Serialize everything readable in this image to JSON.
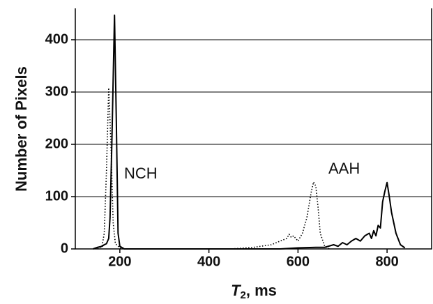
{
  "chart_data": {
    "type": "line",
    "xlabel": {
      "symbol": "T",
      "subscript": "2",
      "unit": ", ms"
    },
    "ylabel": "Number of Pixels",
    "xlim": [
      100,
      900
    ],
    "ylim": [
      0,
      460
    ],
    "xticks": [
      200,
      400,
      600,
      800
    ],
    "yticks": [
      0,
      100,
      200,
      300,
      400
    ],
    "grid": true,
    "annotations": [
      "NCH",
      "AAH"
    ],
    "series": [
      {
        "color": "#000000",
        "style": "solid",
        "x": [
          140,
          150,
          160,
          165,
          170,
          175,
          178,
          182,
          188,
          192,
          196,
          200,
          210,
          560,
          600,
          640,
          660,
          680,
          690,
          700,
          710,
          720,
          730,
          740,
          750,
          760,
          765,
          770,
          775,
          780,
          785,
          790,
          795,
          800,
          805,
          810,
          820,
          830,
          840
        ],
        "values": [
          0,
          3,
          5,
          8,
          10,
          20,
          60,
          200,
          447,
          250,
          30,
          5,
          0,
          0,
          2,
          3,
          3,
          8,
          5,
          12,
          8,
          15,
          20,
          15,
          25,
          30,
          20,
          35,
          25,
          45,
          40,
          90,
          110,
          127,
          100,
          70,
          30,
          8,
          2
        ]
      },
      {
        "color": "#000000",
        "style": "dotted",
        "x": [
          150,
          160,
          165,
          170,
          175,
          180,
          185,
          190,
          200,
          210,
          450,
          500,
          540,
          560,
          575,
          580,
          585,
          590,
          600,
          610,
          620,
          630,
          635,
          640,
          645,
          650,
          660,
          670
        ],
        "values": [
          0,
          5,
          30,
          150,
          308,
          200,
          50,
          10,
          2,
          0,
          0,
          3,
          8,
          15,
          20,
          28,
          22,
          25,
          15,
          30,
          60,
          110,
          128,
          120,
          80,
          30,
          5,
          0
        ]
      }
    ]
  }
}
